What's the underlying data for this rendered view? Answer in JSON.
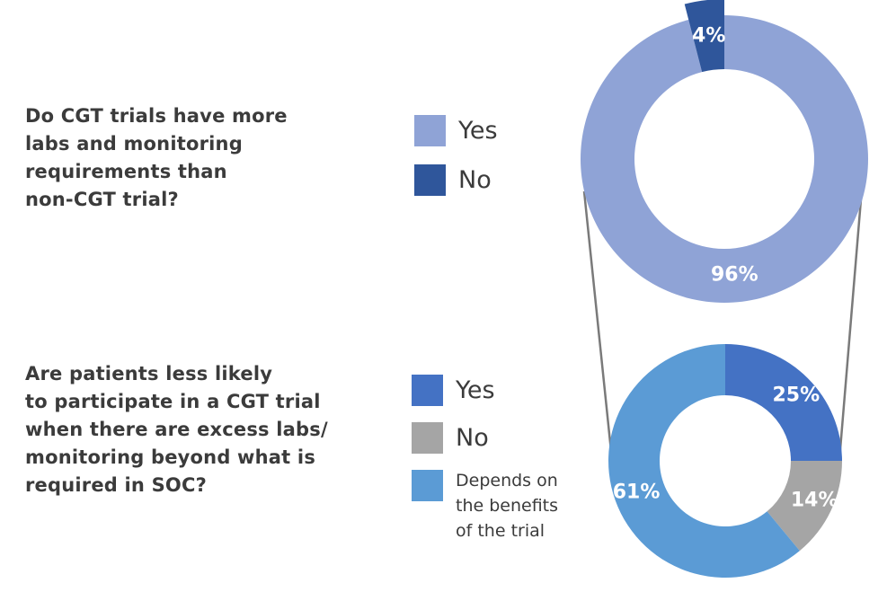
{
  "chart_data": [
    {
      "type": "pie",
      "subtype": "donut",
      "title": "Do CGT trials have more\nlabs and monitoring\nrequirements than\nnon-CGT trial?",
      "categories": [
        "Yes",
        "No"
      ],
      "values": [
        96,
        4
      ],
      "value_labels": [
        "96%",
        "4%"
      ],
      "colors": [
        "#8fa3d6",
        "#2f569b"
      ],
      "legend_position": "left"
    },
    {
      "type": "pie",
      "subtype": "donut",
      "title": "Are patients less likely\nto participate in a CGT trial\nwhen there are excess labs/\nmonitoring beyond what is\nrequired in SOC?",
      "categories": [
        "Yes",
        "No",
        "Depends on\nthe benefits\nof the trial"
      ],
      "values": [
        25,
        14,
        61
      ],
      "value_labels": [
        "25%",
        "14%",
        "61%"
      ],
      "colors": [
        "#4472c4",
        "#a5a5a5",
        "#5b9bd5"
      ],
      "legend_position": "left"
    }
  ]
}
